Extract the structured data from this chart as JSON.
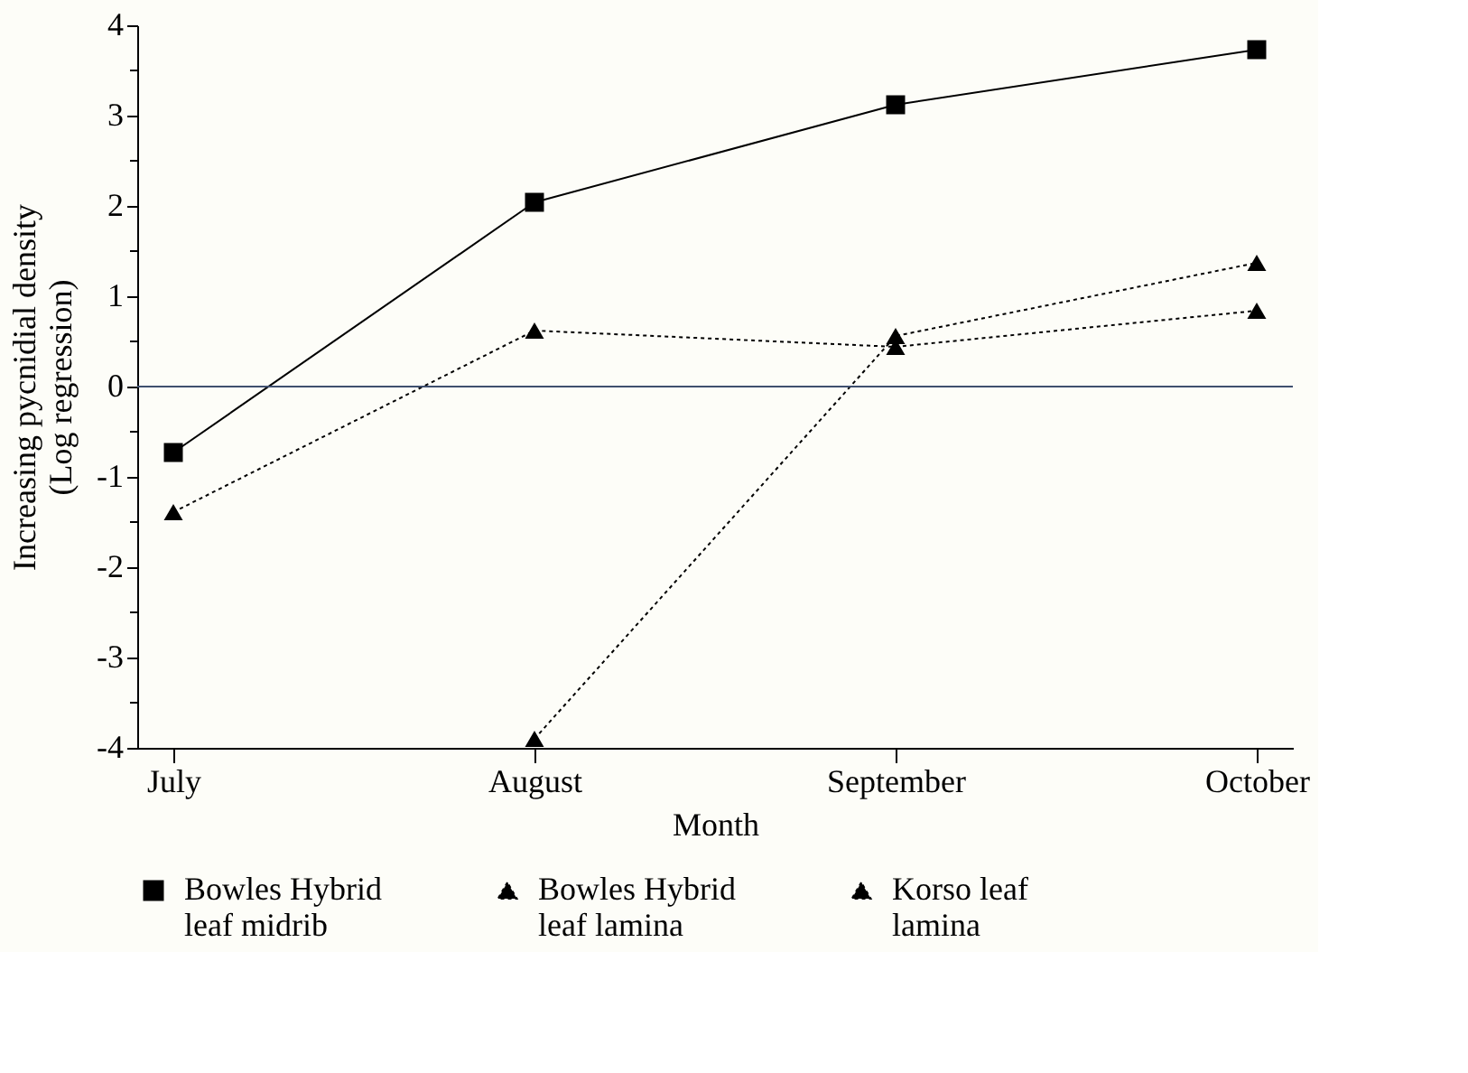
{
  "chart_data": {
    "type": "line",
    "xlabel": "Month",
    "ylabel": "Increasing pycnidial density\n(Log regression)",
    "categories": [
      "July",
      "August",
      "September",
      "October"
    ],
    "series": [
      {
        "name": "Bowles Hybrid\nleaf midrib",
        "color": "#000000",
        "marker": "square",
        "line_style": "solid",
        "values": [
          -0.73,
          2.04,
          3.12,
          3.73
        ]
      },
      {
        "name": "Bowles Hybrid\nleaf lamina",
        "color": "#000000",
        "marker": "triangle",
        "line_style": "dotted",
        "values": [
          -1.39,
          0.62,
          0.44,
          0.84
        ]
      },
      {
        "name": "Korso leaf\nlamina",
        "color": "#000000",
        "marker": "triangle",
        "line_style": "dotted",
        "values": [
          null,
          -3.9,
          0.56,
          1.37
        ]
      }
    ],
    "ylim": [
      -4,
      4
    ],
    "yticks": [
      -4,
      {
        "value": -3.5,
        "label": null
      },
      -3,
      {
        "value": -2.5,
        "label": null
      },
      -2,
      {
        "value": -1.5,
        "label": null
      },
      -1,
      {
        "value": -0.5,
        "label": null
      },
      0,
      {
        "value": 0.5,
        "label": null
      },
      1,
      {
        "value": 1.5,
        "label": null
      },
      2,
      {
        "value": 2.5,
        "label": null
      },
      3,
      {
        "value": 3.5,
        "label": null
      },
      4
    ],
    "ref_lines": [
      {
        "axis": "y",
        "value": 0,
        "color": "#3f4f6f"
      }
    ],
    "grid": false,
    "legend": "bottom"
  }
}
